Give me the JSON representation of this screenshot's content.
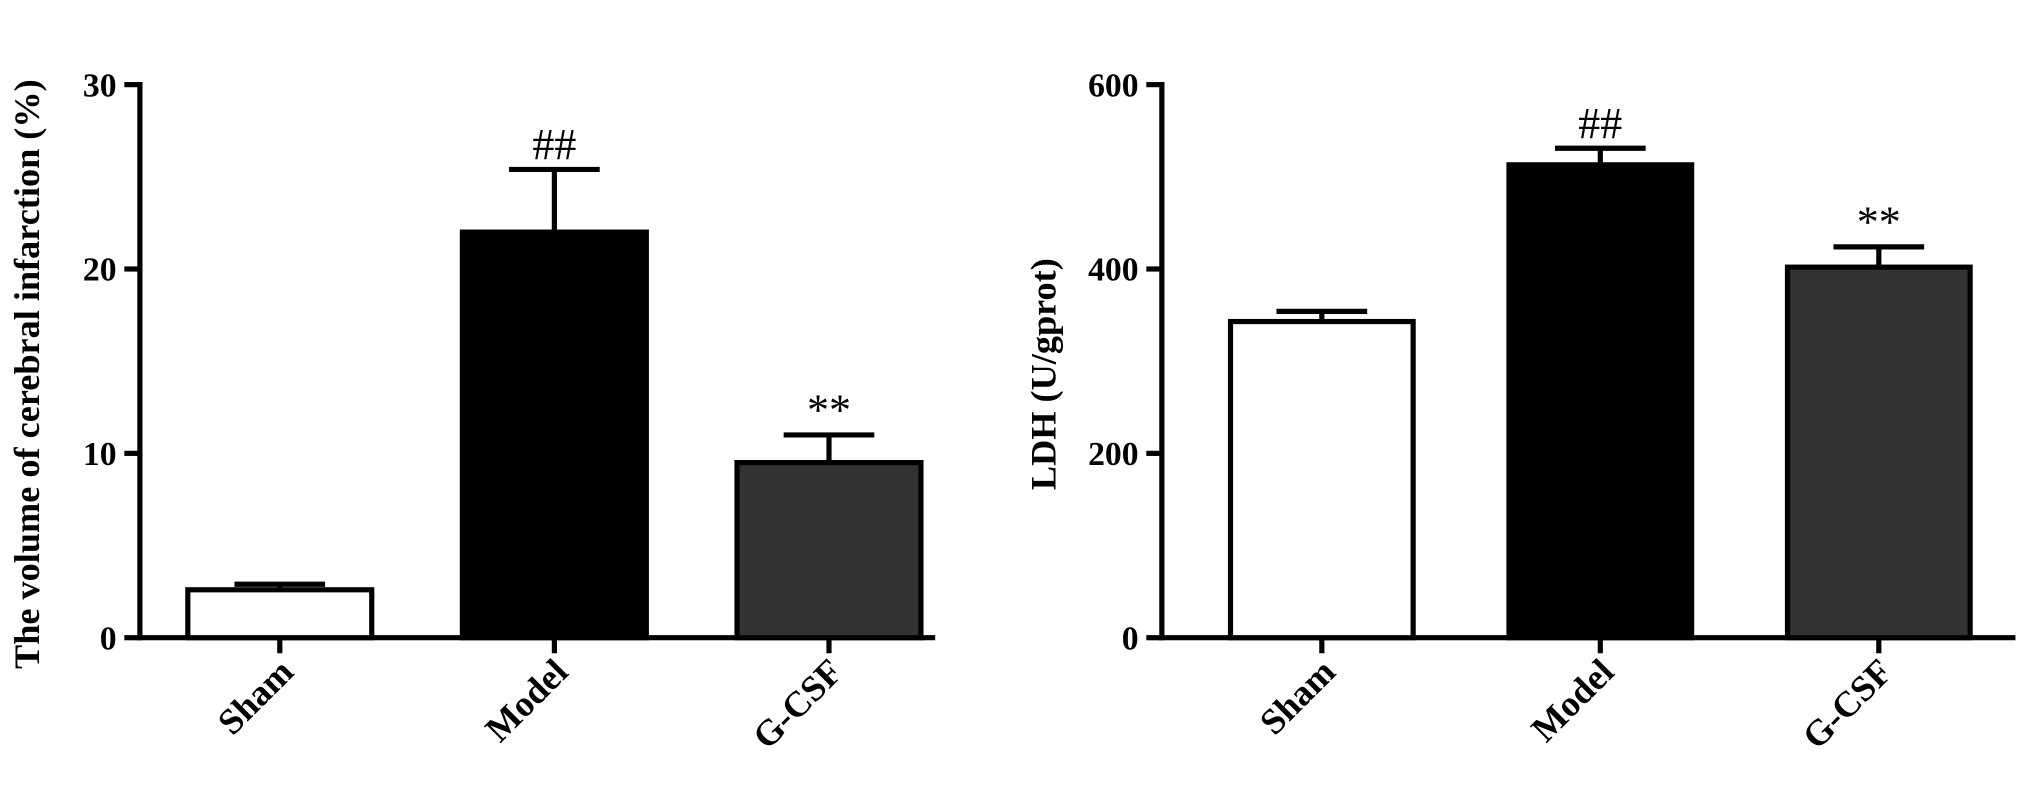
{
  "chart_data": [
    {
      "type": "bar",
      "y_label": "The volume of cerebral infarction (%)",
      "categories": [
        "Sham",
        "Model",
        "G-CSF"
      ],
      "values": [
        2.6,
        22,
        9.5
      ],
      "errors": [
        0.3,
        3.4,
        1.5
      ],
      "colors": [
        "#ffffff",
        "#000000",
        "#333333"
      ],
      "annotations": [
        null,
        "##",
        "**"
      ],
      "ylim": [
        0,
        30
      ],
      "yticks": [
        0,
        10,
        20,
        30
      ]
    },
    {
      "type": "bar",
      "y_label": "LDH (U/gprot)",
      "categories": [
        "Sham",
        "Model",
        "G-CSF"
      ],
      "values": [
        343,
        513,
        402
      ],
      "errors": [
        11,
        18,
        22
      ],
      "colors": [
        "#ffffff",
        "#000000",
        "#333333"
      ],
      "annotations": [
        null,
        "##",
        "**"
      ],
      "ylim": [
        0,
        600
      ],
      "yticks": [
        0,
        200,
        400,
        600
      ]
    }
  ]
}
